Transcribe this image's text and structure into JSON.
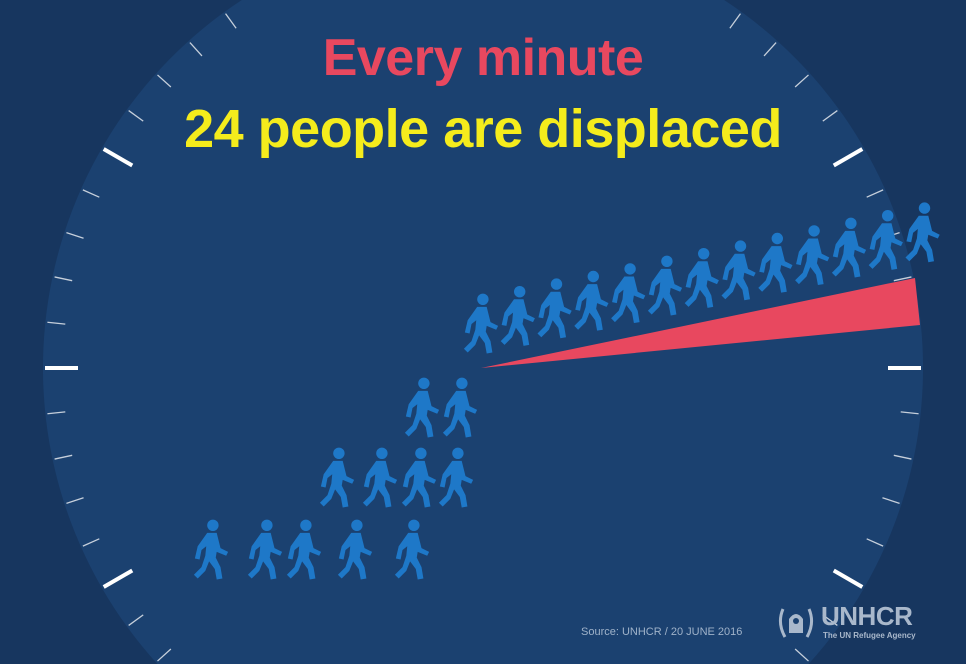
{
  "headline": {
    "line1": "Every minute",
    "line2": "24 people are displaced"
  },
  "colors": {
    "line1": "#e8485f",
    "line2": "#f5ec1c",
    "clock_face": "#1b4170",
    "background": "#17365f",
    "figures": "#1e78c8",
    "hand": "#e8485f",
    "ticks": "#ffffff"
  },
  "figures_count": 24,
  "source": "Source: UNHCR / 20 JUNE 2016",
  "logo": {
    "name": "UNHCR",
    "tagline": "The UN Refugee Agency",
    "icon": "unhcr-emblem-icon"
  }
}
